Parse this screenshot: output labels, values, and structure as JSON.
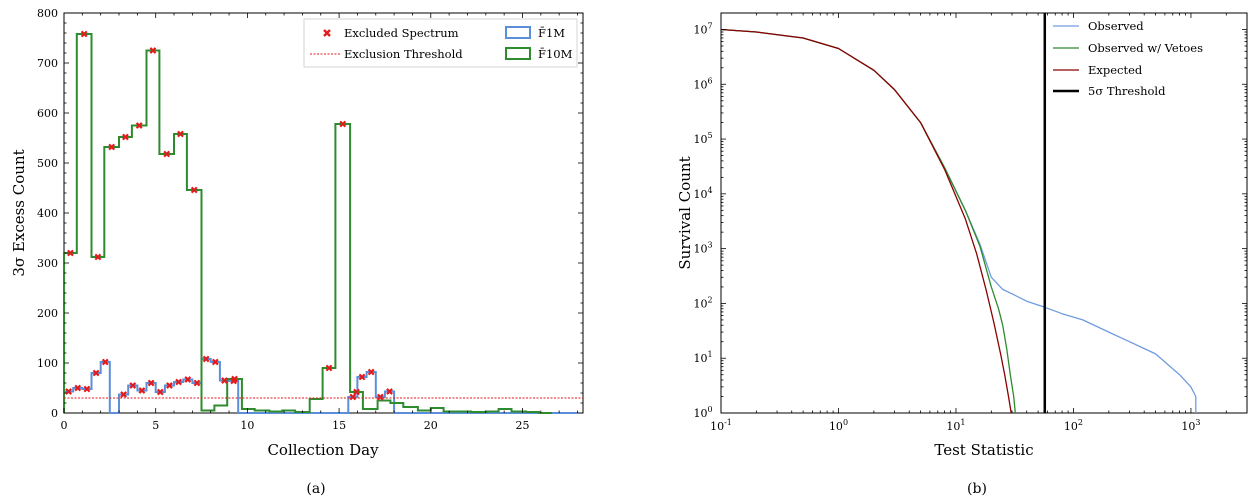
{
  "chart_data": [
    {
      "type": "step",
      "caption": "(a)",
      "xlabel": "Collection Day",
      "ylabel": "3σ Excess Count",
      "xlim": [
        0,
        28.3
      ],
      "ylim": [
        0,
        800
      ],
      "xticks": [
        0,
        5,
        10,
        15,
        20,
        25
      ],
      "yticks": [
        0,
        100,
        200,
        300,
        400,
        500,
        600,
        700,
        800
      ],
      "bin_width": 0.5,
      "legend_position": "top-right",
      "threshold": {
        "label": "Exclusion Threshold",
        "value": 30,
        "color": "#e41a1c"
      },
      "excluded_label": "Excluded Spectrum",
      "series": [
        {
          "name": "F̄1M",
          "color": "#5b8fd9",
          "bin_starts": [
            0,
            0.5,
            1,
            1.5,
            2,
            2.5,
            3,
            3.5,
            4,
            4.5,
            5,
            5.5,
            6,
            6.5,
            7,
            7.5,
            8,
            8.5,
            9,
            9.5,
            10,
            10.5,
            11,
            11.5,
            12,
            12.5,
            13,
            13.5,
            14,
            14.5,
            15,
            15.5,
            16,
            16.5,
            17,
            17.5,
            18,
            18.5,
            19,
            19.5,
            20,
            20.5,
            21,
            21.5,
            22,
            22.5,
            23,
            23.5,
            24,
            24.5,
            25,
            25.5,
            26,
            26.5,
            27,
            27.5
          ],
          "values": [
            43,
            50,
            48,
            80,
            102,
            0,
            37,
            55,
            45,
            60,
            42,
            55,
            62,
            67,
            60,
            108,
            102,
            65,
            64,
            0,
            0,
            0,
            0,
            0,
            0,
            0,
            0,
            0,
            0,
            0,
            0,
            32,
            72,
            82,
            32,
            43,
            0,
            0,
            0,
            0,
            0,
            0,
            0,
            0,
            0,
            0,
            0,
            0,
            0,
            0,
            0,
            0,
            0,
            0,
            0,
            0
          ],
          "excluded_bins": [
            0,
            1,
            2,
            3,
            4,
            6,
            7,
            8,
            9,
            10,
            11,
            12,
            13,
            14,
            15,
            16,
            17,
            18,
            31,
            32,
            33,
            34,
            35
          ]
        },
        {
          "name": "F̄10M",
          "color": "#2e8b2e",
          "bin_starts": [
            0,
            0.7,
            1.5,
            2.2,
            3,
            3.7,
            4.5,
            5.2,
            6,
            6.7,
            7.5,
            8.2,
            8.9,
            9.7,
            10.4,
            11.2,
            11.9,
            12.6,
            13.4,
            14.1,
            14.8,
            15.6,
            16.3,
            17.1,
            17.8,
            18.5,
            19.3,
            20,
            20.7,
            21.5,
            22.2,
            23,
            23.7,
            24.4,
            25.2,
            25.9
          ],
          "values": [
            320,
            758,
            312,
            532,
            552,
            575,
            725,
            518,
            558,
            446,
            5,
            15,
            68,
            8,
            5,
            3,
            5,
            2,
            28,
            90,
            578,
            42,
            8,
            25,
            20,
            12,
            5,
            10,
            3,
            3,
            2,
            3,
            8,
            3,
            2,
            0
          ],
          "excluded_bins": [
            0,
            1,
            2,
            3,
            4,
            5,
            6,
            7,
            8,
            9,
            12,
            19,
            20,
            21
          ]
        }
      ]
    },
    {
      "type": "line",
      "caption": "(b)",
      "xlabel": "Test Statistic",
      "ylabel": "Survival Count",
      "xscale": "log",
      "yscale": "log",
      "xlim": [
        0.1,
        3000
      ],
      "ylim": [
        1,
        20000000
      ],
      "xticks": [
        "10^-1",
        "10^0",
        "10^1",
        "10^2",
        "10^3"
      ],
      "yticks": [
        "10^0",
        "10^1",
        "10^2",
        "10^3",
        "10^4",
        "10^5",
        "10^6",
        "10^7"
      ],
      "legend_position": "top-right",
      "threshold": {
        "label": "5σ Threshold",
        "x": 57,
        "color": "#000000"
      },
      "series": [
        {
          "name": "Observed",
          "color": "#6f9ce0",
          "x": [
            0.1,
            0.2,
            0.5,
            1,
            2,
            3,
            5,
            8,
            12,
            16,
            20,
            25,
            30,
            40,
            57,
            80,
            120,
            200,
            300,
            500,
            800,
            1000,
            1100,
            1100
          ],
          "y": [
            10000000,
            9000000,
            7000000,
            4500000,
            1800000,
            800000,
            200000,
            30000,
            5000,
            1200,
            300,
            180,
            150,
            110,
            85,
            65,
            50,
            30,
            20,
            12,
            5,
            3,
            2,
            1
          ]
        },
        {
          "name": "Observed w/ Vetoes",
          "color": "#2e8b2e",
          "x": [
            0.1,
            0.2,
            0.5,
            1,
            2,
            3,
            5,
            8,
            12,
            16,
            20,
            23,
            25,
            27,
            29,
            31,
            32
          ],
          "y": [
            10000000,
            9000000,
            7000000,
            4500000,
            1800000,
            800000,
            200000,
            30000,
            5000,
            1100,
            200,
            80,
            40,
            15,
            5,
            2,
            1
          ]
        },
        {
          "name": "Expected",
          "color": "#8b0000",
          "x": [
            0.1,
            0.2,
            0.5,
            1,
            2,
            3,
            5,
            8,
            12,
            15,
            18,
            21,
            24,
            26,
            28,
            29.5
          ],
          "y": [
            10000000,
            9000000,
            7000000,
            4500000,
            1800000,
            800000,
            200000,
            28000,
            3500,
            800,
            180,
            45,
            12,
            5,
            2,
            1
          ]
        }
      ]
    }
  ]
}
